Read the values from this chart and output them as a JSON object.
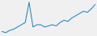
{
  "values": [
    3,
    2.5,
    3.5,
    4,
    5,
    6,
    7,
    16,
    5,
    6,
    6,
    5,
    5.5,
    6,
    5.5,
    7,
    8,
    7.5,
    9,
    10,
    11,
    12,
    11.5,
    13,
    15
  ],
  "line_color": "#2b8ccc",
  "line_width": 0.8,
  "background_color": "#f0f0f0",
  "ylim_min": 1,
  "ylim_max": 17
}
